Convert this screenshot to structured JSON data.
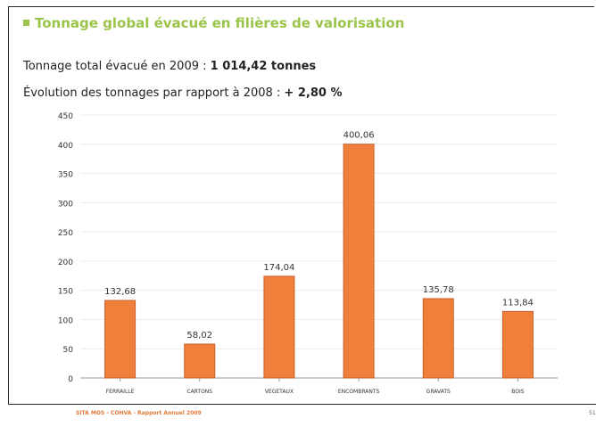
{
  "page": {
    "section_title": "Tonnage global évacué en filières de valorisation",
    "total_label": "Tonnage total évacué en 2009 : ",
    "total_value": "1 014,42 tonnes",
    "evolution_label": "Évolution des tonnages par rapport à 2008 : ",
    "evolution_value": "+ 2,80 %",
    "footer": "SITA MOS - COHVA - Rapport Annuel 2009",
    "page_number": "51"
  },
  "colors": {
    "accent_green": "#9bc44a",
    "bar_fill": "#f07f3c",
    "bar_stroke": "#c9602a",
    "footer_orange": "#e07a3a"
  },
  "chart_data": {
    "type": "bar",
    "categories": [
      "FERRAILLE",
      "CARTONS",
      "VEGETAUX",
      "ENCOMBRANTS",
      "GRAVATS",
      "BOIS"
    ],
    "values": [
      132.68,
      58.02,
      174.04,
      400.06,
      135.78,
      113.84
    ],
    "value_labels": [
      "132,68",
      "58,02",
      "174,04",
      "400,06",
      "135,78",
      "113,84"
    ],
    "ylim": [
      0,
      450
    ],
    "yticks": [
      0,
      50,
      100,
      150,
      200,
      250,
      300,
      350,
      400,
      450
    ],
    "grid": true,
    "legend": "none"
  }
}
